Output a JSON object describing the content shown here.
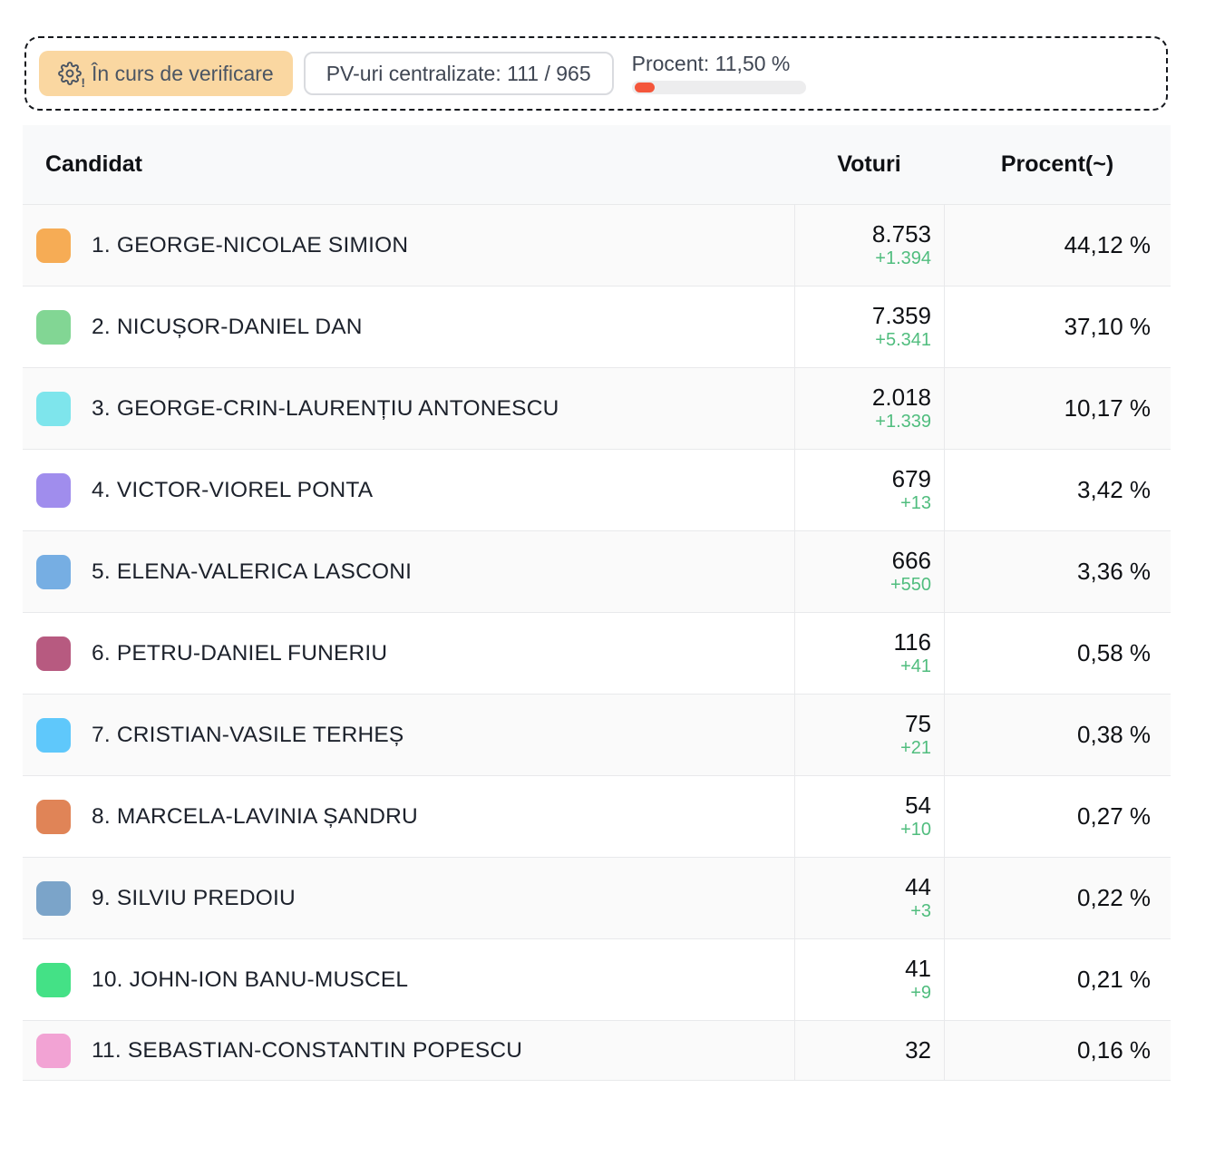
{
  "status_panel": {
    "badge": {
      "label": "În curs de verificare"
    },
    "pv_counter": {
      "label": "PV-uri centralizate: 111 / 965"
    },
    "progress": {
      "label": "Procent: 11,50 %",
      "percent": 11.5,
      "fill_color": "#f4563b",
      "track_color": "#ededee"
    },
    "badge_color": "#fad7a1"
  },
  "table": {
    "headers": {
      "candidate": "Candidat",
      "votes": "Voturi",
      "percent": "Procent(~)"
    },
    "delta_color": "#50bd7e",
    "rows": [
      {
        "label": "1. GEORGE-NICOLAE SIMION",
        "swatch_color": "#f6ac55",
        "votes": "8.753",
        "delta": "+1.394",
        "percent": "44,12 %"
      },
      {
        "label": "2. NICUȘOR-DANIEL DAN",
        "swatch_color": "#82d694",
        "votes": "7.359",
        "delta": "+5.341",
        "percent": "37,10 %"
      },
      {
        "label": "3. GEORGE-CRIN-LAURENȚIU ANTONESCU",
        "swatch_color": "#7ee5ec",
        "votes": "2.018",
        "delta": "+1.339",
        "percent": "10,17 %"
      },
      {
        "label": "4. VICTOR-VIOREL PONTA",
        "swatch_color": "#a08ded",
        "votes": "679",
        "delta": "+13",
        "percent": "3,42 %"
      },
      {
        "label": "5. ELENA-VALERICA LASCONI",
        "swatch_color": "#76aee3",
        "votes": "666",
        "delta": "+550",
        "percent": "3,36 %"
      },
      {
        "label": "6. PETRU-DANIEL FUNERIU",
        "swatch_color": "#b75a80",
        "votes": "116",
        "delta": "+41",
        "percent": "0,58 %"
      },
      {
        "label": "7. CRISTIAN-VASILE TERHEȘ",
        "swatch_color": "#5fc8fb",
        "votes": "75",
        "delta": "+21",
        "percent": "0,38 %"
      },
      {
        "label": "8. MARCELA-LAVINIA ȘANDRU",
        "swatch_color": "#e08457",
        "votes": "54",
        "delta": "+10",
        "percent": "0,27 %"
      },
      {
        "label": "9. SILVIU PREDOIU",
        "swatch_color": "#7ba4c9",
        "votes": "44",
        "delta": "+3",
        "percent": "0,22 %"
      },
      {
        "label": "10. JOHN-ION BANU-MUSCEL",
        "swatch_color": "#44e186",
        "votes": "41",
        "delta": "+9",
        "percent": "0,21 %"
      },
      {
        "label": "11. SEBASTIAN-CONSTANTIN POPESCU",
        "swatch_color": "#f2a3d4",
        "votes": "32",
        "delta": "",
        "percent": "0,16 %"
      }
    ]
  }
}
